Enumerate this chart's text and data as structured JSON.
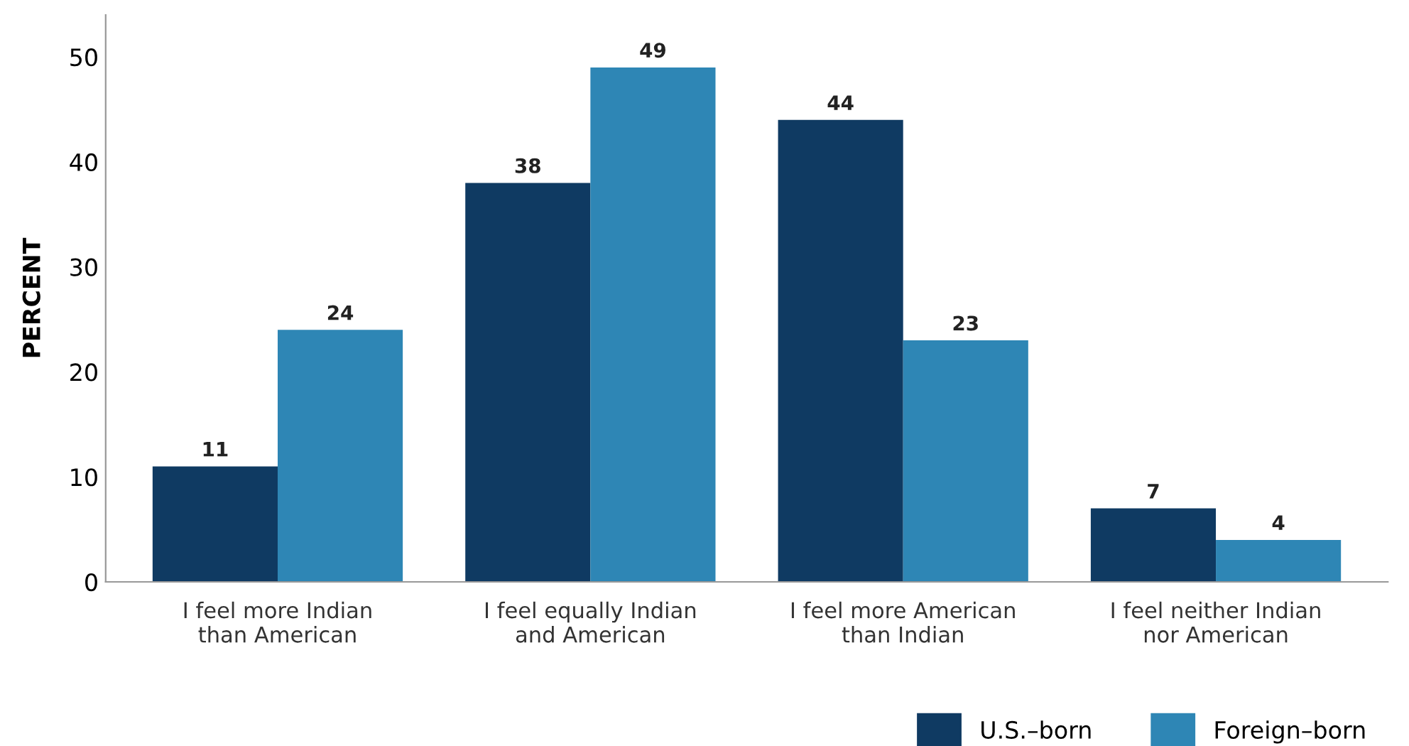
{
  "chart_data": {
    "type": "bar",
    "ylabel": "PERCENT",
    "categories": [
      "I feel more Indian\nthan American",
      "I feel equally Indian\nand American",
      "I feel more American\nthan Indian",
      "I feel neither Indian\nnor American"
    ],
    "series": [
      {
        "name": "U.S.–born",
        "color": "#0f3a62",
        "values": [
          11,
          38,
          44,
          7
        ]
      },
      {
        "name": "Foreign–born",
        "color": "#2e86b5",
        "values": [
          24,
          49,
          23,
          4
        ]
      }
    ],
    "ylim": [
      0,
      54
    ],
    "yticks": [
      0,
      10,
      20,
      30,
      40,
      50
    ],
    "grid": false,
    "legend": "bottom right",
    "data_labels": true
  }
}
